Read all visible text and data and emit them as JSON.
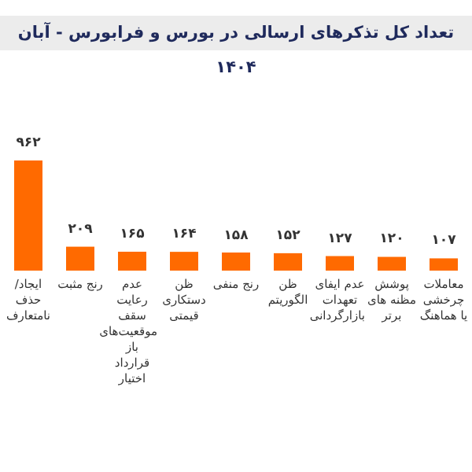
{
  "chart_data": {
    "type": "bar",
    "title": "تعداد کل تذکرهای ارسالی در بورس و فرابورس - آبان ۱۴۰۴",
    "categories": [
      "ایجاد/حذف نامتعارف",
      "رنج مثبت",
      "عدم رعایت سقف موقعیت‌های باز قرارداد اختیار",
      "ظن دستکاری قیمتی",
      "رنج منفی",
      "ظن الگوریتم",
      "عدم ایفای تعهدات بازارگردانی",
      "پوشش مظنه های برتر",
      "معاملات چرخشی یا هماهنگ"
    ],
    "values": [
      962,
      209,
      165,
      164,
      158,
      152,
      127,
      120,
      107
    ],
    "value_labels": [
      "۹۶۲",
      "۲۰۹",
      "۱۶۵",
      "۱۶۴",
      "۱۵۸",
      "۱۵۲",
      "۱۲۷",
      "۱۲۰",
      "۱۰۷"
    ],
    "color": "#ff6a00",
    "relative": false
  }
}
